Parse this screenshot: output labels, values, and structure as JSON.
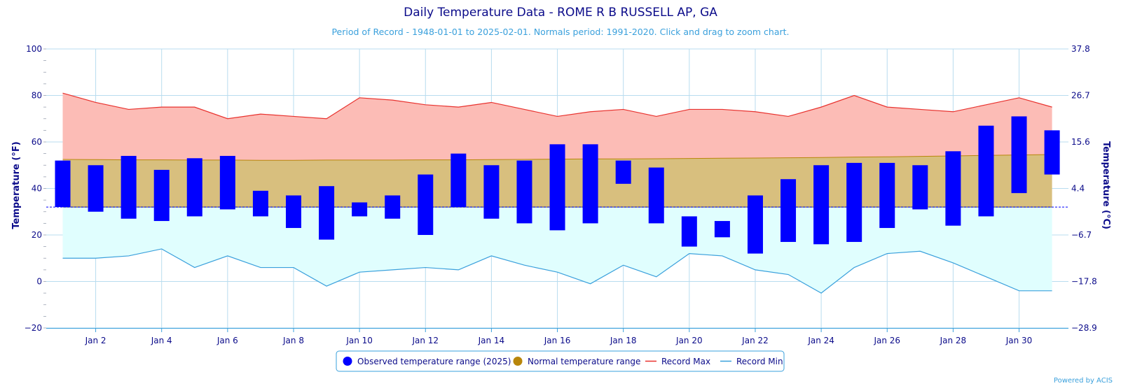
{
  "chart_data": {
    "type": "bar",
    "title": "Daily Temperature Data - ROME R B RUSSELL AP, GA",
    "subtitle": "Period of Record - 1948-01-01 to 2025-02-01. Normals period: 1991-2020. Click and drag to zoom chart.",
    "ylabel": "Temperature (°F)",
    "ylabel_right": "Temperature (°C)",
    "ylim": [
      -20,
      100
    ],
    "days": [
      1,
      2,
      3,
      4,
      5,
      6,
      7,
      8,
      9,
      10,
      11,
      12,
      13,
      14,
      15,
      16,
      17,
      18,
      19,
      20,
      21,
      22,
      23,
      24,
      25,
      26,
      27,
      28,
      29,
      30,
      31
    ],
    "x_ticks": [
      "Jan 2",
      "Jan 4",
      "Jan 6",
      "Jan 8",
      "Jan 10",
      "Jan 12",
      "Jan 14",
      "Jan 16",
      "Jan 18",
      "Jan 20",
      "Jan 22",
      "Jan 24",
      "Jan 26",
      "Jan 28",
      "Jan 30"
    ],
    "x_tick_days": [
      2,
      4,
      6,
      8,
      10,
      12,
      14,
      16,
      18,
      20,
      22,
      24,
      26,
      28,
      30
    ],
    "y_ticks_left": [
      "100",
      "80",
      "60",
      "40",
      "20",
      "0",
      "−20"
    ],
    "y_ticks_left_values": [
      100,
      80,
      60,
      40,
      20,
      0,
      -20
    ],
    "y_ticks_right": [
      "37.8",
      "26.7",
      "15.6",
      "4.4",
      "−6.7",
      "−17.8",
      "−28.9"
    ],
    "freezing_line": 32,
    "grid": true,
    "legend_position": "bottom-center",
    "series": [
      {
        "name": "Observed temperature range (2025)",
        "type": "range-bar",
        "color": "#0000ff",
        "low": [
          32,
          30,
          27,
          26,
          28,
          31,
          28,
          23,
          18,
          28,
          27,
          20,
          32,
          27,
          25,
          22,
          25,
          42,
          25,
          15,
          19,
          12,
          17,
          16,
          17,
          23,
          31,
          24,
          28,
          38,
          46
        ],
        "high": [
          52,
          50,
          54,
          48,
          53,
          54,
          39,
          37,
          41,
          34,
          37,
          46,
          55,
          50,
          52,
          59,
          59,
          52,
          49,
          28,
          26,
          37,
          44,
          50,
          51,
          51,
          50,
          56,
          67,
          71,
          65
        ]
      },
      {
        "name": "Normal temperature range",
        "type": "area-range",
        "color": "#b8860b",
        "fill": "#d8bf7e",
        "low": [
          32,
          32,
          32,
          32,
          32,
          32,
          32,
          32,
          32,
          32,
          32,
          32,
          32,
          32,
          32,
          32,
          32,
          32,
          32,
          32,
          32,
          32,
          32,
          32,
          32,
          32,
          32,
          32,
          32,
          32,
          32
        ],
        "high": [
          52.5,
          52.4,
          52.3,
          52.3,
          52.2,
          52.2,
          52.1,
          52.1,
          52.2,
          52.2,
          52.2,
          52.3,
          52.3,
          52.4,
          52.5,
          52.6,
          52.7,
          52.7,
          52.8,
          52.9,
          53,
          53.1,
          53.2,
          53.3,
          53.5,
          53.6,
          53.8,
          54,
          54.2,
          54.4,
          54.6
        ]
      },
      {
        "name": "Record Max",
        "type": "line",
        "color": "#e8322e",
        "fill": "#fcbcb6",
        "values": [
          81,
          77,
          74,
          75,
          75,
          70,
          72,
          71,
          70,
          79,
          78,
          76,
          75,
          77,
          74,
          71,
          73,
          74,
          71,
          74,
          74,
          73,
          71,
          75,
          80,
          75,
          74,
          73,
          76,
          79,
          75
        ]
      },
      {
        "name": "Record Min",
        "type": "line",
        "color": "#3aa0dc",
        "fill": "#e0fefe",
        "values": [
          10,
          10,
          11,
          14,
          6,
          11,
          6,
          6,
          -2,
          4,
          5,
          6,
          5,
          11,
          7,
          4,
          -1,
          7,
          2,
          12,
          11,
          5,
          3,
          -5,
          6,
          12,
          13,
          8,
          2,
          -4,
          -4
        ]
      }
    ],
    "credit": "Powered by ACIS"
  }
}
